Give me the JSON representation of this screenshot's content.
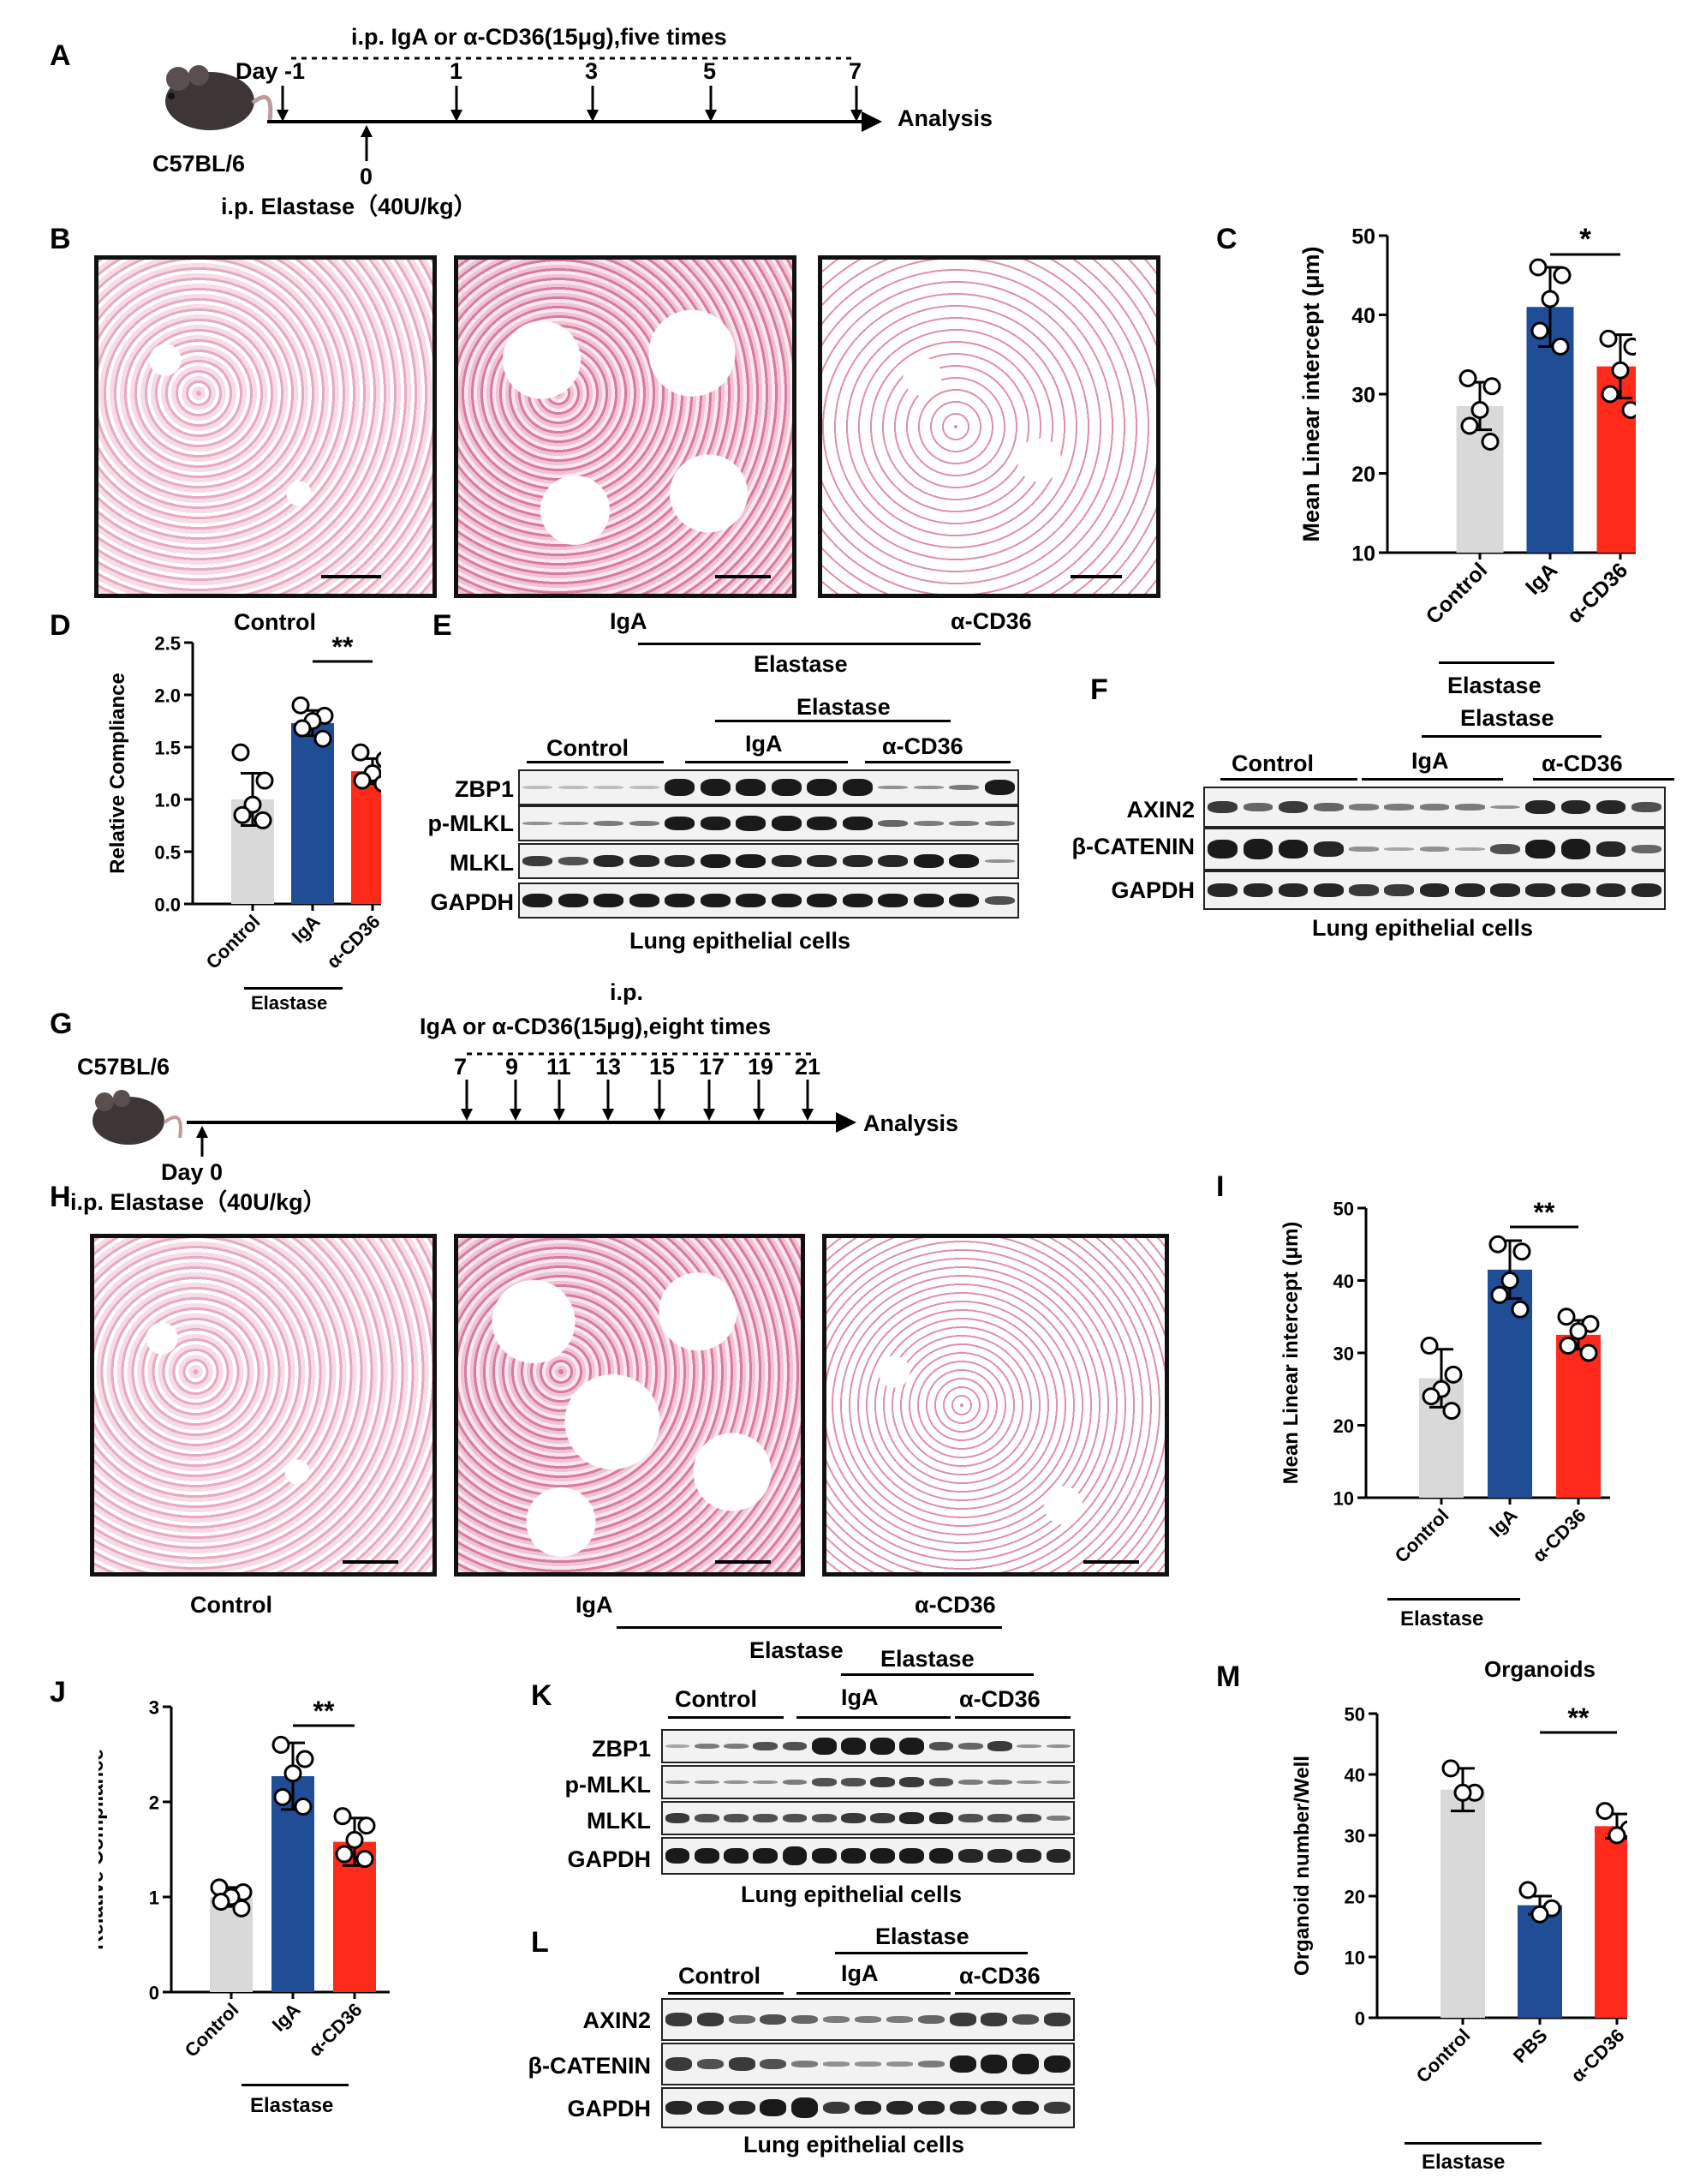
{
  "panels": {
    "A": {
      "letter": "A",
      "strain": "C57BL/6",
      "schedule": "i.p. IgA or α-CD36(15μg),five times",
      "day_label": "Day -1",
      "days": [
        "1",
        "3",
        "5",
        "7"
      ],
      "day0": "0",
      "elastase": "i.p. Elastase（40U/kg）",
      "analysis": "Analysis"
    },
    "B": {
      "letter": "B",
      "labels": [
        "Control",
        "IgA",
        "α-CD36"
      ],
      "group": "Elastase"
    },
    "C": {
      "letter": "C",
      "group": "Elastase"
    },
    "D": {
      "letter": "D",
      "group": "Elastase"
    },
    "E": {
      "letter": "E",
      "elastase": "Elastase",
      "groups": [
        "Control",
        "IgA",
        "α-CD36"
      ],
      "rows": [
        "ZBP1",
        "p-MLKL",
        "MLKL",
        "GAPDH"
      ],
      "caption": "Lung epithelial cells"
    },
    "F": {
      "letter": "F",
      "elastase_top": "Elastase",
      "elastase": "Elastase",
      "groups": [
        "Control",
        "IgA",
        "α-CD36"
      ],
      "rows": [
        "AXIN2",
        "β-CATENIN",
        "GAPDH"
      ],
      "caption": "Lung epithelial cells"
    },
    "G": {
      "letter": "G",
      "strain": "C57BL/6",
      "ip": "i.p.",
      "schedule": "IgA or α-CD36(15μg),eight times",
      "days": [
        "7",
        "9",
        "11",
        "13",
        "15",
        "17",
        "19",
        "21"
      ],
      "day0": "Day 0",
      "analysis": "Analysis"
    },
    "H": {
      "letter": "H",
      "elastase": "i.p. Elastase（40U/kg）",
      "labels": [
        "Control",
        "IgA",
        "α-CD36"
      ],
      "group": "Elastase"
    },
    "I": {
      "letter": "I",
      "group": "Elastase"
    },
    "J": {
      "letter": "J",
      "group": "Elastase"
    },
    "K": {
      "letter": "K",
      "elastase": "Elastase",
      "groups": [
        "Control",
        "IgA",
        "α-CD36"
      ],
      "rows": [
        "ZBP1",
        "p-MLKL",
        "MLKL",
        "GAPDH"
      ],
      "caption": "Lung epithelial cells"
    },
    "L": {
      "letter": "L",
      "elastase": "Elastase",
      "groups": [
        "Control",
        "IgA",
        "α-CD36"
      ],
      "rows": [
        "AXIN2",
        "β-CATENIN",
        "GAPDH"
      ],
      "caption": "Lung epithelial cells"
    },
    "M": {
      "letter": "M",
      "group": "Elastase"
    }
  },
  "chart_data": [
    {
      "id": "C",
      "type": "bar",
      "categories": [
        "Control",
        "IgA",
        "α-CD36"
      ],
      "values": [
        28.5,
        41,
        33.5
      ],
      "errors": [
        3,
        5,
        4
      ],
      "points": [
        [
          32,
          31,
          28,
          26,
          24
        ],
        [
          46,
          45,
          42,
          38,
          36
        ],
        [
          37,
          36,
          33,
          30,
          28
        ]
      ],
      "colors": [
        "#d9d9d9",
        "#1f4e96",
        "#ff2a1a"
      ],
      "ylabel": "Mean Linear intercept (μm)",
      "ylim": [
        10,
        50
      ],
      "yticks": [
        10,
        20,
        30,
        40,
        50
      ],
      "significance": "*"
    },
    {
      "id": "D",
      "type": "bar",
      "categories": [
        "Control",
        "IgA",
        "α-CD36"
      ],
      "values": [
        1.0,
        1.73,
        1.27
      ],
      "errors": [
        0.25,
        0.12,
        0.12
      ],
      "points": [
        [
          1.45,
          1.18,
          0.95,
          0.85,
          0.8
        ],
        [
          1.9,
          1.8,
          1.75,
          1.68,
          1.58
        ],
        [
          1.45,
          1.38,
          1.25,
          1.18,
          1.15
        ]
      ],
      "colors": [
        "#d9d9d9",
        "#1f4e96",
        "#ff2a1a"
      ],
      "ylabel": "Relative Compliance",
      "ylim": [
        0,
        2.5
      ],
      "yticks": [
        "0.0",
        "0.5",
        "1.0",
        "1.5",
        "2.0",
        "2.5"
      ],
      "significance": "**"
    },
    {
      "id": "I",
      "type": "bar",
      "categories": [
        "Control",
        "IgA",
        "α-CD36"
      ],
      "values": [
        26.5,
        41.5,
        32.5
      ],
      "errors": [
        4,
        4,
        2
      ],
      "points": [
        [
          31,
          27,
          25,
          24,
          22
        ],
        [
          45,
          44,
          40,
          38,
          36
        ],
        [
          35,
          34,
          33,
          31,
          30
        ]
      ],
      "colors": [
        "#d9d9d9",
        "#1f4e96",
        "#ff2a1a"
      ],
      "ylabel": "Mean Linear intercept (μm)",
      "ylim": [
        10,
        50
      ],
      "yticks": [
        10,
        20,
        30,
        40,
        50
      ],
      "significance": "**"
    },
    {
      "id": "J",
      "type": "bar",
      "categories": [
        "Control",
        "IgA",
        "α-CD36"
      ],
      "values": [
        1.0,
        2.27,
        1.58
      ],
      "errors": [
        0.1,
        0.35,
        0.25
      ],
      "points": [
        [
          1.1,
          1.05,
          1.0,
          0.95,
          0.88
        ],
        [
          2.6,
          2.45,
          2.3,
          2.05,
          1.95
        ],
        [
          1.85,
          1.75,
          1.6,
          1.45,
          1.4
        ]
      ],
      "colors": [
        "#d9d9d9",
        "#1f4e96",
        "#ff2a1a"
      ],
      "ylabel": "Relative Compliance",
      "ylim": [
        0,
        3
      ],
      "yticks": [
        0,
        1,
        2,
        3
      ],
      "significance": "**"
    },
    {
      "id": "M",
      "type": "bar",
      "title": "Organoids",
      "categories": [
        "Control",
        "PBS",
        "α-CD36"
      ],
      "values": [
        37.5,
        18.5,
        31.5
      ],
      "errors": [
        3.5,
        1.5,
        2
      ],
      "points": [
        [
          41,
          37,
          37
        ],
        [
          21,
          18,
          17
        ],
        [
          34,
          31,
          30
        ]
      ],
      "colors": [
        "#d9d9d9",
        "#1f4e96",
        "#ff2a1a"
      ],
      "ylabel": "Organoid number/Well",
      "ylim": [
        0,
        50
      ],
      "yticks": [
        0,
        10,
        20,
        30,
        40,
        50
      ],
      "significance": "**"
    }
  ]
}
